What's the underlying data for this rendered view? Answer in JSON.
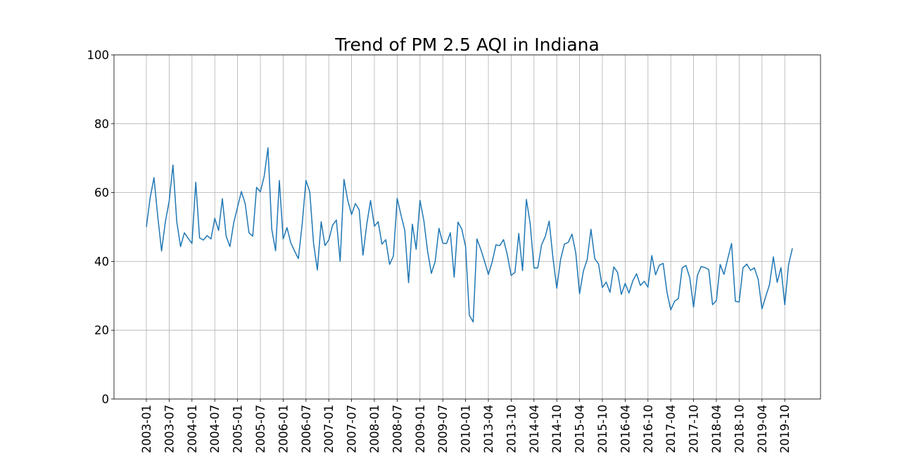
{
  "chart_data": {
    "type": "line",
    "title": "Trend of PM 2.5 AQI in Indiana",
    "xlabel": "",
    "ylabel": "",
    "ylim": [
      0,
      100
    ],
    "yticks": [
      0,
      20,
      40,
      60,
      80,
      100
    ],
    "grid": true,
    "legend": "none",
    "line_color": "#1f77b4",
    "xticks": [
      {
        "label": "2003-01",
        "index": 0
      },
      {
        "label": "2003-07",
        "index": 6
      },
      {
        "label": "2004-01",
        "index": 12
      },
      {
        "label": "2004-07",
        "index": 18
      },
      {
        "label": "2005-01",
        "index": 24
      },
      {
        "label": "2005-07",
        "index": 30
      },
      {
        "label": "2006-01",
        "index": 36
      },
      {
        "label": "2006-07",
        "index": 42
      },
      {
        "label": "2007-01",
        "index": 48
      },
      {
        "label": "2007-07",
        "index": 54
      },
      {
        "label": "2008-01",
        "index": 60
      },
      {
        "label": "2008-07",
        "index": 66
      },
      {
        "label": "2009-01",
        "index": 72
      },
      {
        "label": "2009-07",
        "index": 78
      },
      {
        "label": "2010-01",
        "index": 84
      },
      {
        "label": "2013-04",
        "index": 90
      },
      {
        "label": "2013-10",
        "index": 96
      },
      {
        "label": "2014-04",
        "index": 102
      },
      {
        "label": "2014-10",
        "index": 108
      },
      {
        "label": "2015-04",
        "index": 114
      },
      {
        "label": "2015-10",
        "index": 120
      },
      {
        "label": "2016-04",
        "index": 126
      },
      {
        "label": "2016-10",
        "index": 132
      },
      {
        "label": "2017-04",
        "index": 138
      },
      {
        "label": "2017-10",
        "index": 144
      },
      {
        "label": "2018-04",
        "index": 150
      },
      {
        "label": "2018-10",
        "index": 156
      },
      {
        "label": "2019-04",
        "index": 162
      },
      {
        "label": "2019-10",
        "index": 168
      }
    ],
    "series": [
      {
        "values": [
          50,
          58.5,
          64.3,
          53,
          43,
          51.5,
          57.5,
          68,
          51.5,
          44.3,
          48.3,
          46.7,
          45.2,
          63,
          46.8,
          46.2,
          47.5,
          46.5,
          52.5,
          49,
          58.2,
          47.3,
          44.3,
          51.3,
          55.8,
          60.3,
          56.8,
          48.3,
          47.3,
          61.5,
          60.2,
          64.7,
          73,
          49.3,
          43.1,
          63.5,
          46.5,
          49.8,
          45.4,
          43,
          40.8,
          50.8,
          63.5,
          60.2,
          45.2,
          37.5,
          51.5,
          44.6,
          46.2,
          50.5,
          52,
          40,
          63.8,
          57.7,
          53.6,
          56.8,
          55,
          41.8,
          50.8,
          57.7,
          50.2,
          51.5,
          45,
          46.3,
          39.1,
          41.5,
          58.3,
          53.5,
          49,
          33.8,
          50.8,
          43.5,
          57.7,
          52,
          43,
          36.5,
          40,
          49.6,
          45.3,
          45.2,
          48.3,
          35.4,
          51.4,
          49.4,
          44.3,
          24.3,
          22.4,
          46.5,
          43.5,
          40,
          36.2,
          39.8,
          44.8,
          44.6,
          46.3,
          41.8,
          35.9,
          36.8,
          48.1,
          37.3,
          58,
          51,
          38.1,
          38.1,
          44.8,
          47.3,
          51.7,
          41,
          32.2,
          40.5,
          45,
          45.5,
          47.9,
          42.5,
          30.6,
          37.2,
          40.5,
          49.3,
          40.8,
          39.2,
          32.4,
          34,
          31,
          38.4,
          36.8,
          30.4,
          33.6,
          30.8,
          34.3,
          36.4,
          33,
          34.2,
          32.5,
          41.7,
          36.1,
          38.9,
          39.4,
          31,
          25.9,
          28.4,
          29.2,
          38.1,
          38.8,
          35.2,
          26.7,
          35.9,
          38.5,
          38.2,
          37.6,
          27.4,
          28.6,
          39.1,
          36.2,
          40.8,
          45.2,
          28.4,
          28.2,
          38.1,
          39.2,
          37.4,
          38.1,
          34.8,
          26.2,
          29.8,
          33.3,
          41.3,
          33.9,
          38.2,
          27.4,
          39,
          43.8
        ]
      }
    ]
  }
}
